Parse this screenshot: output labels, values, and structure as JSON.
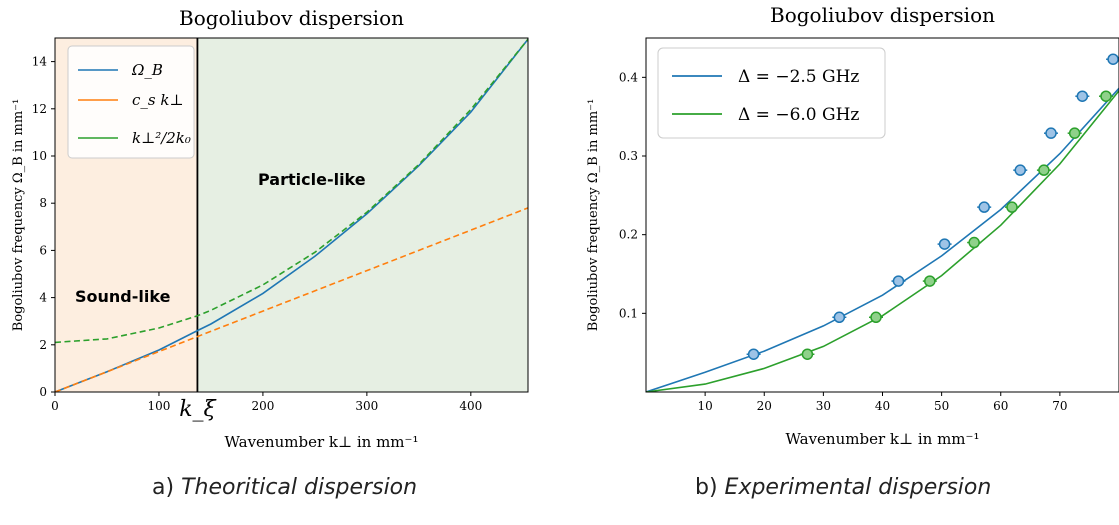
{
  "chart_data": [
    {
      "type": "line",
      "title": "Bogoliubov dispersion",
      "xlabel": "Wavenumber k⊥ in mm⁻¹",
      "ylabel": "Bogoliubov frequency Ω_B in mm⁻¹",
      "xlim": [
        0,
        455
      ],
      "ylim": [
        0,
        15
      ],
      "xticks": [
        0,
        100,
        200,
        300,
        400
      ],
      "yticks": [
        0,
        2,
        4,
        6,
        8,
        10,
        12,
        14
      ],
      "k_xi": 137,
      "k_xi_label": "k_ξ",
      "regions": [
        {
          "name": "Sound-like",
          "x_range": [
            0,
            137
          ],
          "color": "#fdeee0"
        },
        {
          "name": "Particle-like",
          "x_range": [
            137,
            455
          ],
          "color": "#e6efe3"
        }
      ],
      "series": [
        {
          "name": "Ω_B",
          "color": "#1f77b4",
          "style": "solid",
          "x": [
            0,
            50,
            100,
            137,
            150,
            200,
            250,
            300,
            350,
            400,
            455
          ],
          "y": [
            0,
            0.86,
            1.78,
            2.6,
            2.88,
            4.18,
            5.75,
            7.55,
            9.59,
            11.86,
            14.95
          ]
        },
        {
          "name": "c_s k⊥",
          "color": "#ff7f0e",
          "style": "dashed",
          "x": [
            0,
            455
          ],
          "y": [
            0,
            7.8
          ]
        },
        {
          "name": "k⊥²/2k₀",
          "color": "#2ca02c",
          "style": "dashed",
          "x": [
            0,
            50,
            100,
            137,
            150,
            200,
            250,
            300,
            350,
            400,
            455
          ],
          "y": [
            2.1,
            2.25,
            2.71,
            3.23,
            3.46,
            4.54,
            5.92,
            7.62,
            9.64,
            11.97,
            14.95
          ]
        }
      ],
      "legend": {
        "placement": "top-left",
        "entries": [
          "Ω_B",
          "c_s k⊥",
          "k⊥²/2k₀"
        ]
      },
      "annotations": [
        "Sound-like",
        "Particle-like"
      ],
      "caption": "a) Theoritical dispersion"
    },
    {
      "type": "scatter",
      "title": "Bogoliubov dispersion",
      "xlabel": "Wavenumber k⊥ in mm⁻¹",
      "ylabel": "Bogoliubov frequency Ω_B in mm⁻¹",
      "xlim": [
        0,
        80
      ],
      "ylim": [
        0,
        0.45
      ],
      "xticks": [
        10,
        20,
        30,
        40,
        50,
        60,
        70
      ],
      "yticks": [
        0.1,
        0.2,
        0.3,
        0.4
      ],
      "series": [
        {
          "name": "Δ = −2.5 GHz",
          "color": "#1f77b4",
          "fill": "#9ec3e6",
          "points": {
            "x": [
              18.2,
              32.7,
              42.7,
              50.5,
              57.2,
              63.3,
              68.5,
              73.8,
              79.0
            ],
            "y": [
              0.048,
              0.095,
              0.141,
              0.188,
              0.235,
              0.282,
              0.329,
              0.376,
              0.423
            ]
          },
          "fit": {
            "x": [
              0,
              10,
              20,
              30,
              40,
              50,
              60,
              70,
              80
            ],
            "y": [
              0.0,
              0.025,
              0.052,
              0.084,
              0.123,
              0.173,
              0.232,
              0.303,
              0.386
            ]
          }
        },
        {
          "name": "Δ = −6.0 GHz",
          "color": "#2ca02c",
          "fill": "#8fd18a",
          "points": {
            "x": [
              27.3,
              38.9,
              48.0,
              55.5,
              61.9,
              67.3,
              72.5,
              77.8
            ],
            "y": [
              0.048,
              0.095,
              0.141,
              0.19,
              0.235,
              0.282,
              0.329,
              0.376
            ]
          },
          "fit": {
            "x": [
              0,
              10,
              20,
              30,
              40,
              50,
              60,
              70,
              80
            ],
            "y": [
              0.0,
              0.01,
              0.03,
              0.058,
              0.097,
              0.148,
              0.212,
              0.29,
              0.383
            ]
          }
        }
      ],
      "legend": {
        "placement": "top-left",
        "entries": [
          "Δ = −2.5 GHz",
          "Δ = −6.0 GHz"
        ]
      },
      "caption": "b) Experimental dispersion"
    }
  ],
  "captions": {
    "left_prefix": "a) ",
    "left_text": "Theoritical dispersion",
    "right_prefix": "b) ",
    "right_text": "Experimental dispersion"
  }
}
